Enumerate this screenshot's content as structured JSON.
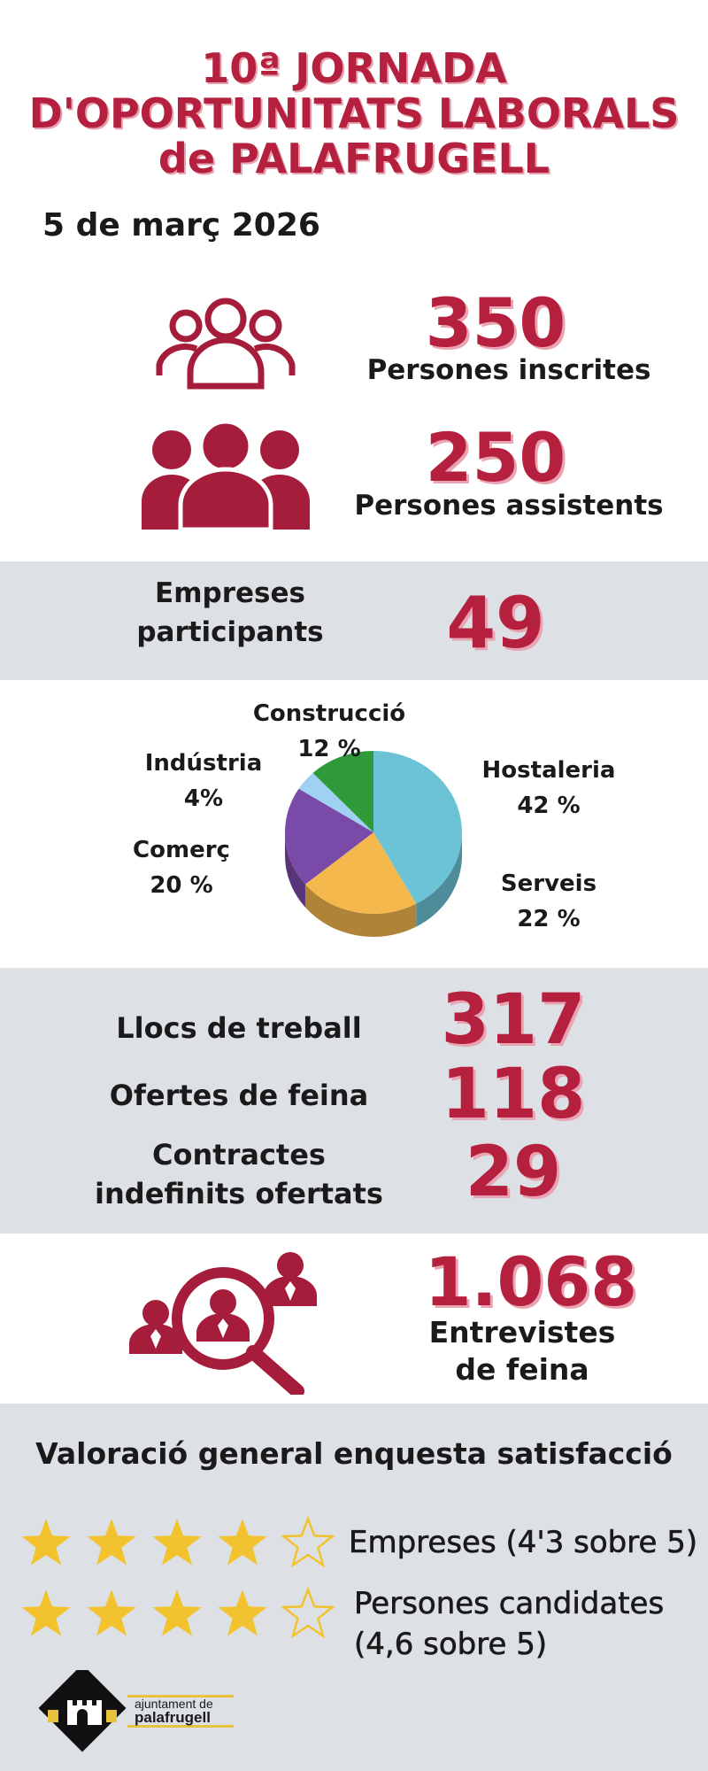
{
  "header": {
    "title_lines": [
      "10ª JORNADA",
      "D'OPORTUNITATS LABORALS",
      "de PALAFRUGELL"
    ],
    "date": "5 de març 2026"
  },
  "attendance": {
    "registered": {
      "value": "350",
      "label": "Persones inscrites",
      "icon": "people-outline-icon"
    },
    "attended": {
      "value": "250",
      "label": "Persones assistents",
      "icon": "people-filled-icon"
    }
  },
  "companies": {
    "label_line1": "Empreses",
    "label_line2": "participants",
    "value": "49"
  },
  "chart_data": {
    "type": "pie",
    "slices": [
      {
        "name": "Hostaleria",
        "label_pct": "42 %",
        "value": 42,
        "color": "#6cc3d6"
      },
      {
        "name": "Serveis",
        "label_pct": "22 %",
        "value": 22,
        "color": "#f5b84d"
      },
      {
        "name": "Comerç",
        "label_pct": "20 %",
        "value": 20,
        "color": "#7a4aa8"
      },
      {
        "name": "Indústria",
        "label_pct": "4%",
        "value": 4,
        "color": "#9fd2f2"
      },
      {
        "name": "Construcció",
        "label_pct": "12 %",
        "value": 12,
        "color": "#2e9a3a"
      }
    ]
  },
  "jobs": {
    "positions": {
      "label": "Llocs de treball",
      "value": "317"
    },
    "offers": {
      "label": "Ofertes de feina",
      "value": "118"
    },
    "contracts": {
      "label_line1": "Contractes",
      "label_line2": "indefinits ofertats",
      "value": "29"
    }
  },
  "interviews": {
    "value": "1.068",
    "label_line1": "Entrevistes",
    "label_line2": "de feina",
    "icon": "magnifier-people-icon"
  },
  "survey": {
    "title": "Valoració general enquesta satisfacció",
    "companies": {
      "text": "Empreses (4'3 sobre 5)",
      "rating": 4.3,
      "filled_stars": 4
    },
    "candidates": {
      "text_line1": "Persones candidates",
      "text_line2": "(4,6 sobre 5)",
      "rating": 4.6,
      "filled_stars": 4
    },
    "star_color": "#f2c32e"
  },
  "footer": {
    "logo_line1": "ajuntament de",
    "logo_line2": "palafrugell"
  }
}
